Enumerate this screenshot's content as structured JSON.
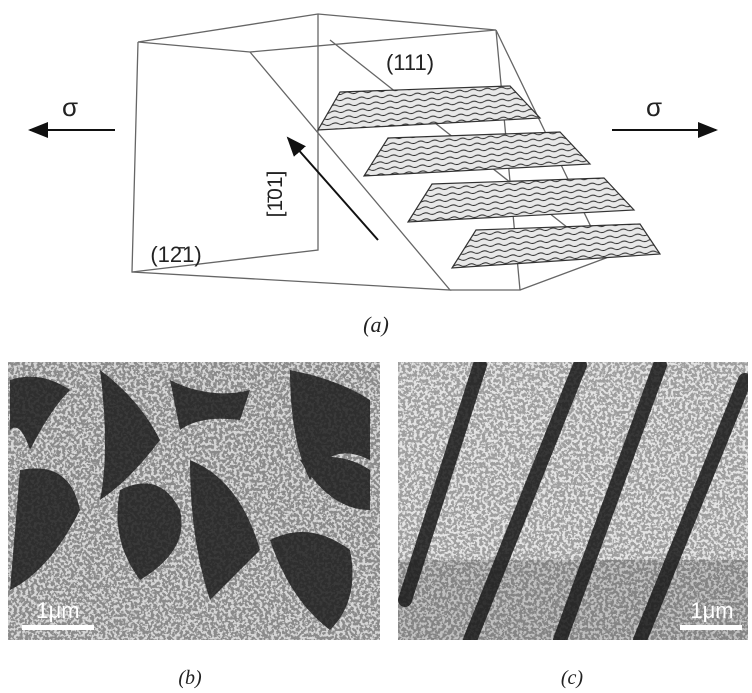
{
  "panel_a": {
    "label": "(a)",
    "sigma_left": "σ",
    "sigma_right": "σ",
    "plane_top": "(111)",
    "direction": "[1̄01]",
    "plane_side": "(12̄1)"
  },
  "panel_b": {
    "label": "(b)",
    "scale_bar": "1μm"
  },
  "panel_c": {
    "label": "(c)",
    "scale_bar": "1μm"
  }
}
